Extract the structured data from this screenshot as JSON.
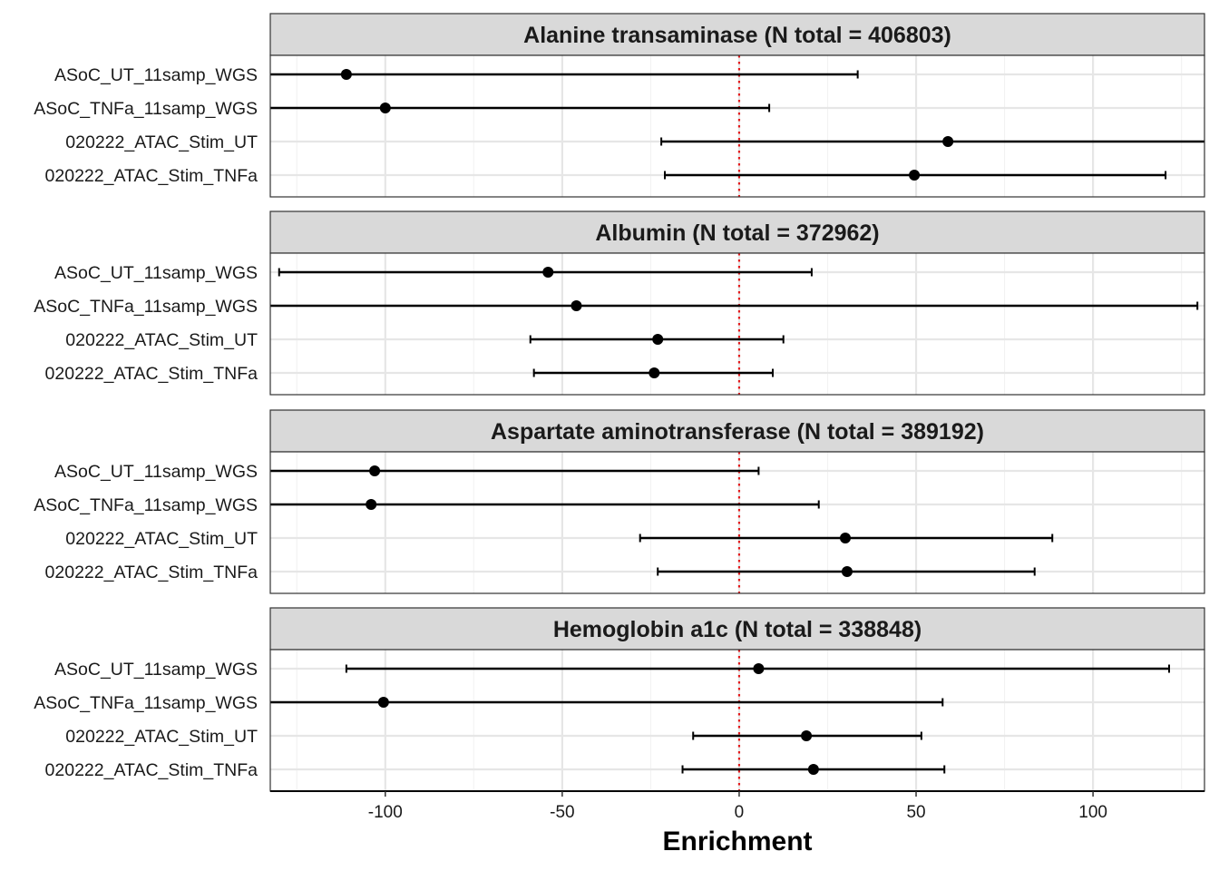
{
  "chart_data": {
    "type": "forest",
    "xlabel": "Enrichment",
    "xlim": [
      -132.5,
      131.5
    ],
    "x_ticks": [
      -100,
      -50,
      0,
      50,
      100
    ],
    "x_tick_labels": [
      "-100",
      "-50",
      "0",
      "50",
      "100"
    ],
    "reference_line": {
      "x": 0,
      "style": "dotted",
      "color": "#e41a1c"
    },
    "grid": true,
    "row_labels": [
      "ASoC_UT_11samp_WGS",
      "ASoC_TNFa_11samp_WGS",
      "020222_ATAC_Stim_UT",
      "020222_ATAC_Stim_TNFa"
    ],
    "facets": [
      {
        "title": "Alanine transaminase (N total = 406803)",
        "rows": [
          {
            "label": "ASoC_UT_11samp_WGS",
            "estimate": -111,
            "lower": null,
            "upper": 33.5
          },
          {
            "label": "ASoC_TNFa_11samp_WGS",
            "estimate": -100,
            "lower": null,
            "upper": 8.5
          },
          {
            "label": "020222_ATAC_Stim_UT",
            "estimate": 59,
            "lower": -22,
            "upper": null
          },
          {
            "label": "020222_ATAC_Stim_TNFa",
            "estimate": 49.5,
            "lower": -21,
            "upper": 120.5
          }
        ]
      },
      {
        "title": "Albumin (N total = 372962)",
        "rows": [
          {
            "label": "ASoC_UT_11samp_WGS",
            "estimate": -54,
            "lower": -130,
            "upper": 20.5
          },
          {
            "label": "ASoC_TNFa_11samp_WGS",
            "estimate": -46,
            "lower": null,
            "upper": 129.5
          },
          {
            "label": "020222_ATAC_Stim_UT",
            "estimate": -23,
            "lower": -59,
            "upper": 12.5
          },
          {
            "label": "020222_ATAC_Stim_TNFa",
            "estimate": -24,
            "lower": -58,
            "upper": 9.5
          }
        ]
      },
      {
        "title": "Aspartate aminotransferase (N total = 389192)",
        "rows": [
          {
            "label": "ASoC_UT_11samp_WGS",
            "estimate": -103,
            "lower": null,
            "upper": 5.5
          },
          {
            "label": "ASoC_TNFa_11samp_WGS",
            "estimate": -104,
            "lower": null,
            "upper": 22.5
          },
          {
            "label": "020222_ATAC_Stim_UT",
            "estimate": 30,
            "lower": -28,
            "upper": 88.5
          },
          {
            "label": "020222_ATAC_Stim_TNFa",
            "estimate": 30.5,
            "lower": -23,
            "upper": 83.5
          }
        ]
      },
      {
        "title": "Hemoglobin a1c (N total = 338848)",
        "rows": [
          {
            "label": "ASoC_UT_11samp_WGS",
            "estimate": 5.5,
            "lower": -111,
            "upper": 121.5
          },
          {
            "label": "ASoC_TNFa_11samp_WGS",
            "estimate": -100.5,
            "lower": null,
            "upper": 57.5
          },
          {
            "label": "020222_ATAC_Stim_UT",
            "estimate": 19,
            "lower": -13,
            "upper": 51.5
          },
          {
            "label": "020222_ATAC_Stim_TNFa",
            "estimate": 21,
            "lower": -16,
            "upper": 58
          }
        ]
      }
    ]
  }
}
